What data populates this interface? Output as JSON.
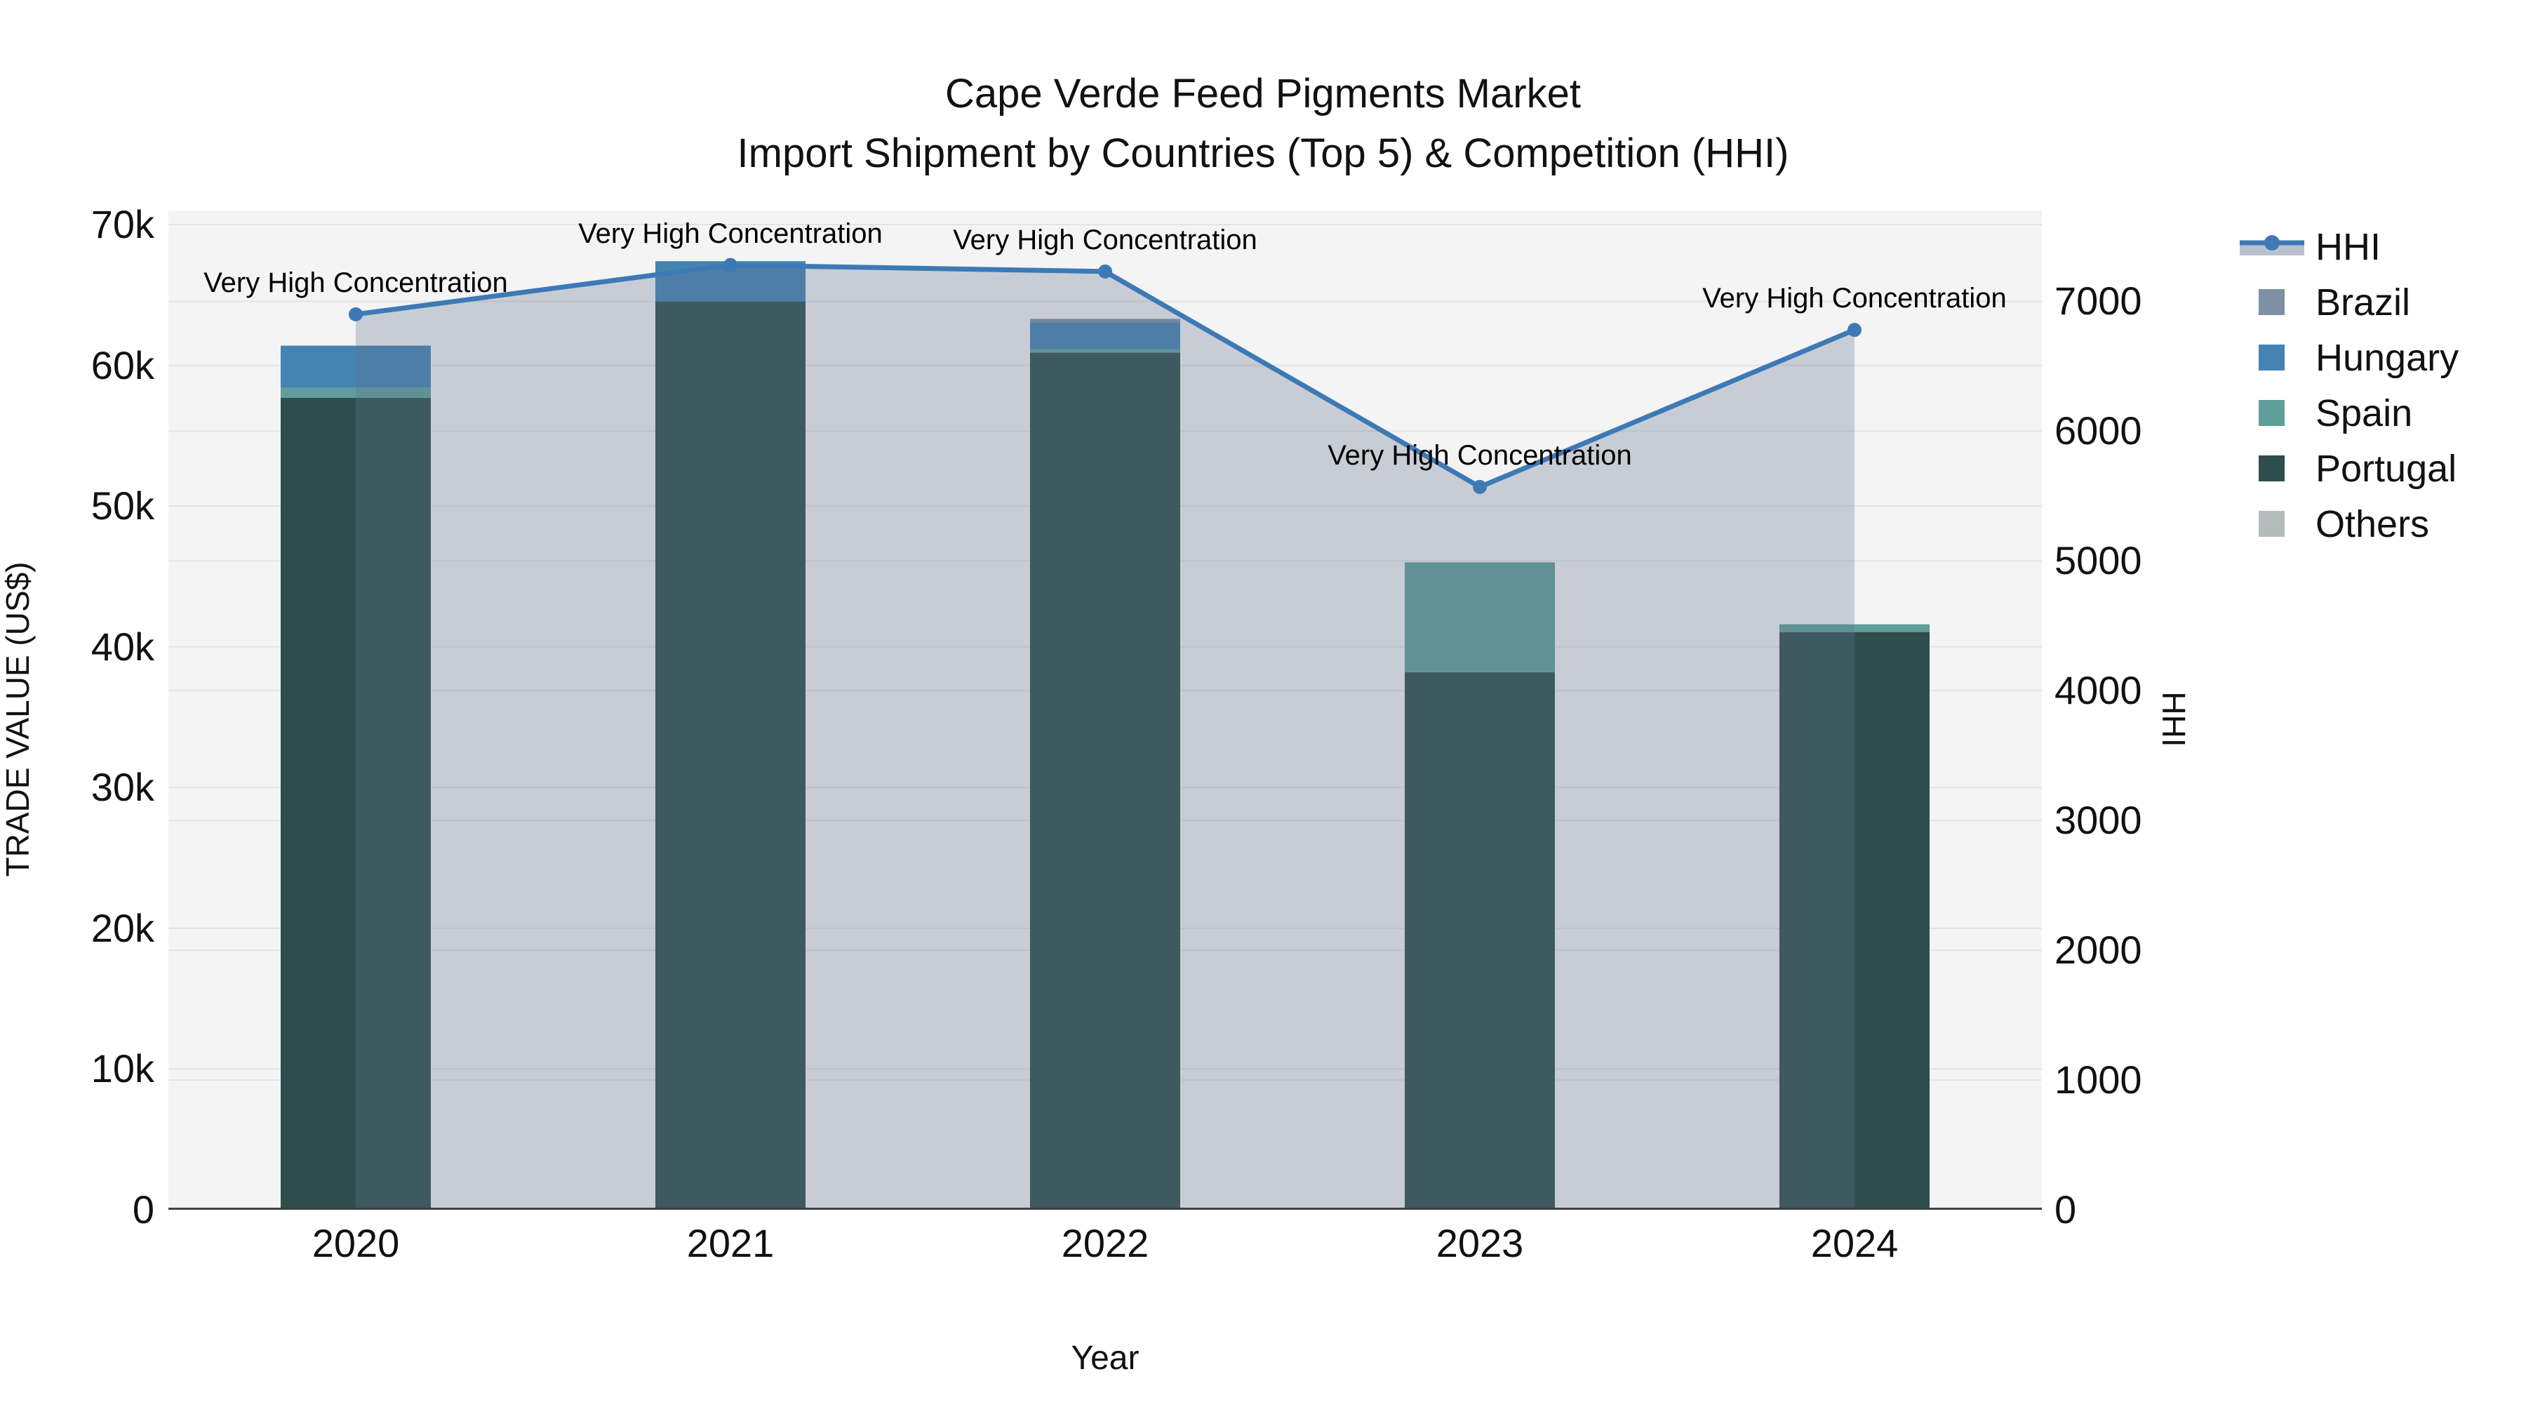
{
  "title": {
    "line1": "Cape Verde Feed Pigments Market",
    "line2": "Import Shipment by Countries (Top 5) & Competition (HHI)"
  },
  "axes": {
    "x": {
      "title": "Year",
      "categories": [
        "2020",
        "2021",
        "2022",
        "2023",
        "2024"
      ]
    },
    "y_left": {
      "title": "TRADE VALUE (US$)",
      "ticks": [
        "0",
        "10k",
        "20k",
        "30k",
        "40k",
        "50k",
        "60k",
        "70k"
      ],
      "tick_values": [
        0,
        10000,
        20000,
        30000,
        40000,
        50000,
        60000,
        70000
      ],
      "range": [
        0,
        71000
      ]
    },
    "y_right": {
      "title": "HHI",
      "ticks": [
        "0",
        "1000",
        "2000",
        "3000",
        "4000",
        "5000",
        "6000",
        "7000"
      ],
      "tick_values": [
        0,
        1000,
        2000,
        3000,
        4000,
        5000,
        6000,
        7000
      ],
      "range": [
        0,
        7700
      ]
    }
  },
  "colors": {
    "background": "#ffffff",
    "plot_background": "#f4f4f5",
    "gridline": "#e3e3e6",
    "axis_line": "#3f3f3f",
    "hhi_line": "#3d7ab5",
    "hhi_area": "rgba(100,116,139,0.30)",
    "brazil": "#7e90a3",
    "hungary": "#4583b3",
    "spain": "#5f9e9a",
    "portugal": "#2e4e4e",
    "others": "#b4bcbc"
  },
  "legend": {
    "items": [
      {
        "label": "HHI",
        "type": "line",
        "color": "#3d7ab5"
      },
      {
        "label": "Brazil",
        "type": "square",
        "color": "#7e90a3"
      },
      {
        "label": "Hungary",
        "type": "square",
        "color": "#4583b3"
      },
      {
        "label": "Spain",
        "type": "square",
        "color": "#5f9e9a"
      },
      {
        "label": "Portugal",
        "type": "square",
        "color": "#2e4e4e"
      },
      {
        "label": "Others",
        "type": "square",
        "color": "#b4bcbc"
      }
    ]
  },
  "chart_data": {
    "type": "bar",
    "subtype": "stacked-bars-with-line-overlay",
    "title": "Cape Verde Feed Pigments Market — Import Shipment by Countries (Top 5) & Competition (HHI)",
    "xlabel": "Year",
    "ylabel_left": "TRADE VALUE (US$)",
    "ylabel_right": "HHI",
    "ylim_left": [
      0,
      71000
    ],
    "ylim_right": [
      0,
      7700
    ],
    "grid": true,
    "legend_position": "right",
    "categories": [
      "2020",
      "2021",
      "2022",
      "2023",
      "2024"
    ],
    "series": [
      {
        "name": "Brazil",
        "type": "bar",
        "axis": "left",
        "color": "#7e90a3",
        "values": [
          0,
          0,
          250,
          0,
          0
        ]
      },
      {
        "name": "Hungary",
        "type": "bar",
        "axis": "left",
        "color": "#4583b3",
        "values": [
          3000,
          2850,
          1900,
          0,
          0
        ]
      },
      {
        "name": "Spain",
        "type": "bar",
        "axis": "left",
        "color": "#5f9e9a",
        "values": [
          700,
          0,
          250,
          7800,
          550
        ]
      },
      {
        "name": "Portugal",
        "type": "bar",
        "axis": "left",
        "color": "#2e4e4e",
        "values": [
          57700,
          64550,
          60900,
          38200,
          41050
        ]
      },
      {
        "name": "Others",
        "type": "bar",
        "axis": "left",
        "color": "#b4bcbc",
        "values": [
          0,
          0,
          0,
          0,
          0
        ]
      },
      {
        "name": "HHI",
        "type": "line-area",
        "axis": "right",
        "color": "#3d7ab5",
        "area_color": "rgba(100,116,139,0.30)",
        "values": [
          6900,
          7280,
          7230,
          5570,
          6780
        ]
      }
    ],
    "stack_totals": [
      61400,
      67400,
      63300,
      46000,
      41600
    ],
    "stack_order_bottom_to_top": [
      "Others",
      "Portugal",
      "Spain",
      "Hungary",
      "Brazil"
    ],
    "annotations": [
      {
        "x": "2020",
        "text": "Very High Concentration"
      },
      {
        "x": "2021",
        "text": "Very High Concentration"
      },
      {
        "x": "2022",
        "text": "Very High Concentration"
      },
      {
        "x": "2023",
        "text": "Very High Concentration"
      },
      {
        "x": "2024",
        "text": "Very High Concentration"
      }
    ]
  }
}
